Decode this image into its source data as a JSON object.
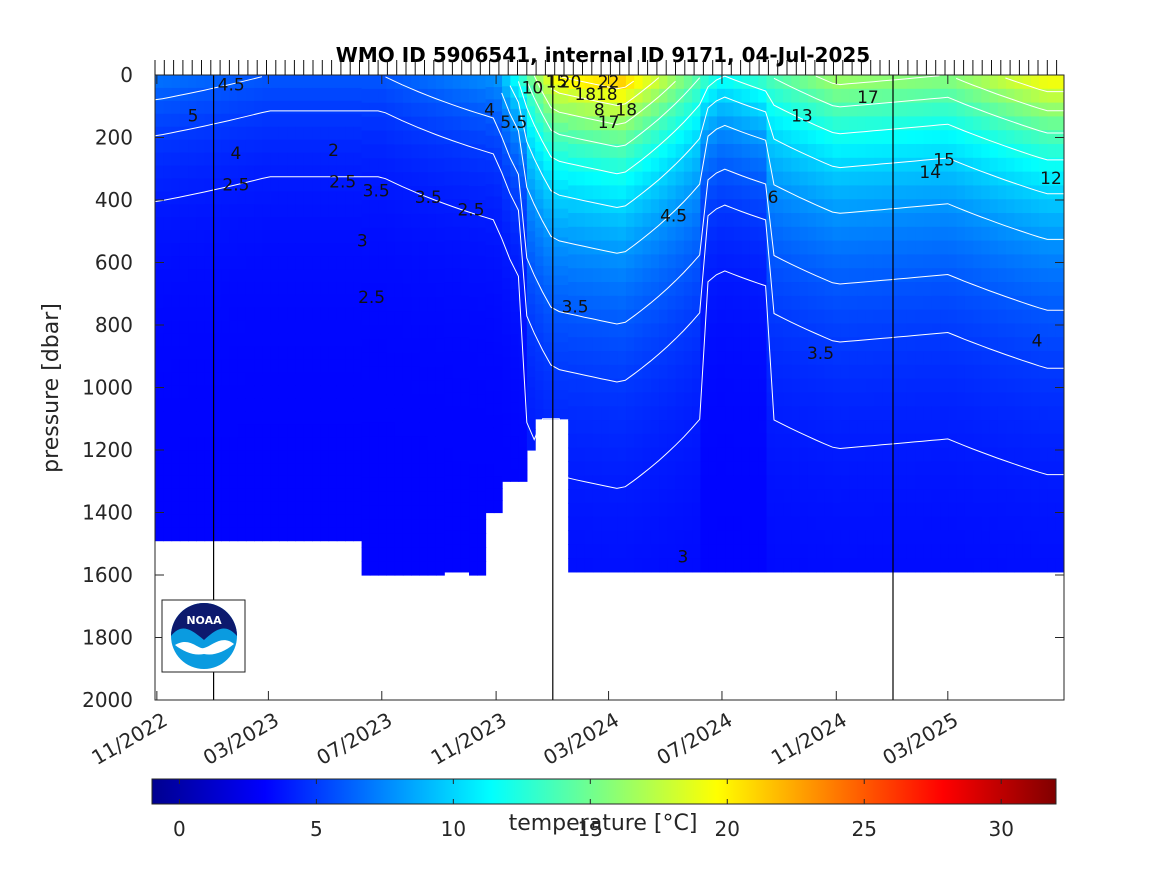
{
  "chart_data": {
    "type": "heatmap",
    "title": "WMO ID 5906541, internal ID 9171, 04-Jul-2025",
    "ylabel": "pressure [dbar]",
    "xlabel": "",
    "ylim": [
      2000,
      0
    ],
    "y_reversed": true,
    "y_ticks": [
      "0",
      "200",
      "400",
      "600",
      "800",
      "1000",
      "1200",
      "1400",
      "1600",
      "1800",
      "2000"
    ],
    "x_ticks": [
      "11/2022",
      "03/2023",
      "07/2023",
      "11/2023",
      "03/2024",
      "07/2024",
      "11/2024",
      "03/2025"
    ],
    "x_start": "2022-10-30",
    "x_end": "2025-07-04",
    "year_boundaries": [
      "2023-01-01",
      "2024-01-01",
      "2025-01-01"
    ],
    "colorbar": {
      "label": "temperature [°C]",
      "range": [
        -1,
        32
      ],
      "ticks": [
        "0",
        "5",
        "10",
        "15",
        "20",
        "25",
        "30"
      ],
      "colormap": "jet"
    },
    "depth_profile": [
      {
        "date": "2022-10-30",
        "max_pressure": 1490
      },
      {
        "date": "2023-04-15",
        "max_pressure": 1490
      },
      {
        "date": "2023-06-10",
        "max_pressure": 1600
      },
      {
        "date": "2023-09-10",
        "max_pressure": 1590
      },
      {
        "date": "2023-10-05",
        "max_pressure": 1600
      },
      {
        "date": "2023-10-20",
        "max_pressure": 1400
      },
      {
        "date": "2023-11-10",
        "max_pressure": 1300
      },
      {
        "date": "2023-12-01",
        "max_pressure": 1200
      },
      {
        "date": "2023-12-15",
        "max_pressure": 1100
      },
      {
        "date": "2024-01-15",
        "max_pressure": 1590
      },
      {
        "date": "2025-07-04",
        "max_pressure": 1590
      }
    ],
    "surface_temperature": [
      {
        "date": "2022-11-01",
        "value": 7
      },
      {
        "date": "2023-03-01",
        "value": 6
      },
      {
        "date": "2023-07-01",
        "value": 6
      },
      {
        "date": "2023-11-01",
        "value": 8
      },
      {
        "date": "2024-01-01",
        "value": 20
      },
      {
        "date": "2024-03-15",
        "value": 22
      },
      {
        "date": "2024-07-01",
        "value": 12
      },
      {
        "date": "2024-11-01",
        "value": 17
      },
      {
        "date": "2025-03-01",
        "value": 16
      },
      {
        "date": "2025-06-15",
        "value": 20
      }
    ],
    "contour_labels": [
      {
        "text": "4.5",
        "date": "2023-01-20",
        "pressure": 30
      },
      {
        "text": "5",
        "date": "2022-12-10",
        "pressure": 130
      },
      {
        "text": "4",
        "date": "2023-01-25",
        "pressure": 250
      },
      {
        "text": "2.5",
        "date": "2023-01-25",
        "pressure": 350
      },
      {
        "text": "2",
        "date": "2023-05-10",
        "pressure": 240
      },
      {
        "text": "2.5",
        "date": "2023-05-20",
        "pressure": 340
      },
      {
        "text": "3.5",
        "date": "2023-06-25",
        "pressure": 370
      },
      {
        "text": "3.5",
        "date": "2023-08-20",
        "pressure": 390
      },
      {
        "text": "2.5",
        "date": "2023-10-05",
        "pressure": 430
      },
      {
        "text": "3",
        "date": "2023-06-10",
        "pressure": 530
      },
      {
        "text": "2.5",
        "date": "2023-06-20",
        "pressure": 710
      },
      {
        "text": "4",
        "date": "2023-10-25",
        "pressure": 110
      },
      {
        "text": "5.5",
        "date": "2023-11-20",
        "pressure": 150
      },
      {
        "text": "10",
        "date": "2023-12-10",
        "pressure": 40
      },
      {
        "text": "15",
        "date": "2024-01-05",
        "pressure": 20
      },
      {
        "text": "20",
        "date": "2024-01-20",
        "pressure": 20
      },
      {
        "text": "22",
        "date": "2024-03-01",
        "pressure": 20
      },
      {
        "text": "18",
        "date": "2024-02-05",
        "pressure": 60
      },
      {
        "text": "18",
        "date": "2024-02-28",
        "pressure": 60
      },
      {
        "text": "8",
        "date": "2024-02-20",
        "pressure": 110
      },
      {
        "text": "18",
        "date": "2024-03-20",
        "pressure": 110
      },
      {
        "text": "17",
        "date": "2024-03-01",
        "pressure": 150
      },
      {
        "text": "3.5",
        "date": "2024-01-25",
        "pressure": 740
      },
      {
        "text": "4.5",
        "date": "2024-05-10",
        "pressure": 450
      },
      {
        "text": "3",
        "date": "2024-05-20",
        "pressure": 1540
      },
      {
        "text": "6",
        "date": "2024-08-25",
        "pressure": 390
      },
      {
        "text": "13",
        "date": "2024-09-25",
        "pressure": 130
      },
      {
        "text": "3.5",
        "date": "2024-10-15",
        "pressure": 890
      },
      {
        "text": "17",
        "date": "2024-12-05",
        "pressure": 70
      },
      {
        "text": "15",
        "date": "2025-02-25",
        "pressure": 270
      },
      {
        "text": "14",
        "date": "2025-02-10",
        "pressure": 310
      },
      {
        "text": "12",
        "date": "2025-06-20",
        "pressure": 330
      },
      {
        "text": "4",
        "date": "2025-06-05",
        "pressure": 850
      }
    ],
    "logo": "NOAA"
  }
}
